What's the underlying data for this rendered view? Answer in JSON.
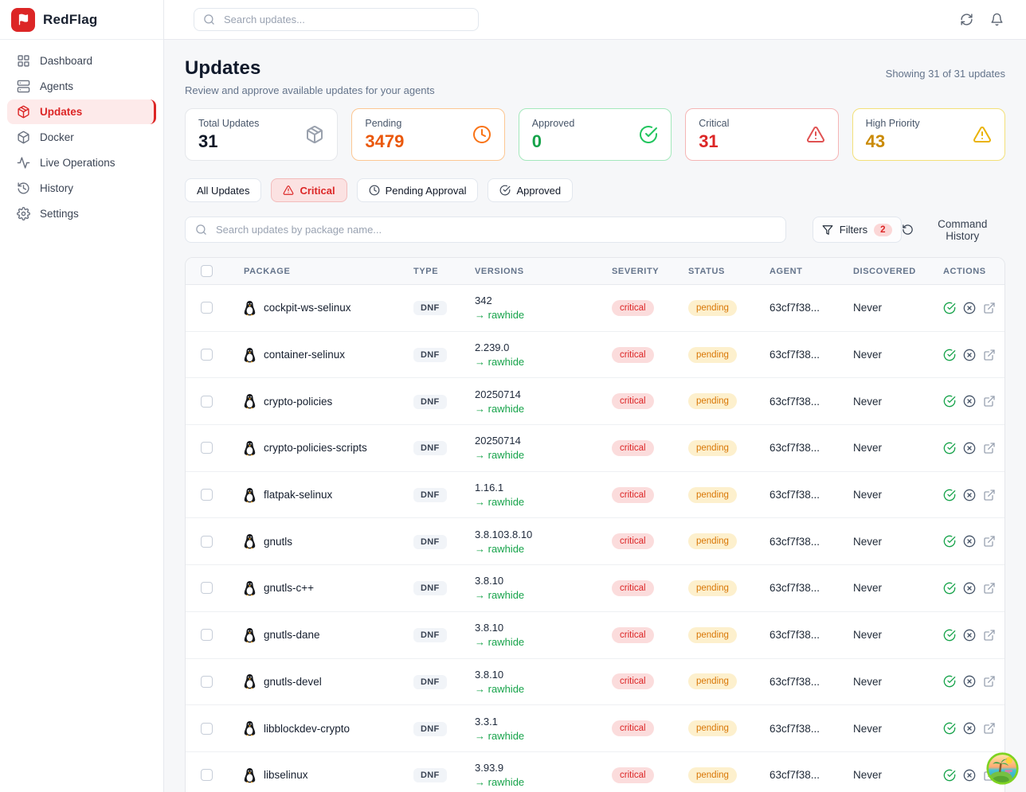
{
  "brand": {
    "name": "RedFlag",
    "accent_color": "#dc2626"
  },
  "sidebar": {
    "items": [
      {
        "label": "Dashboard",
        "icon": "grid",
        "active": false
      },
      {
        "label": "Agents",
        "icon": "server",
        "active": false
      },
      {
        "label": "Updates",
        "icon": "package",
        "active": true
      },
      {
        "label": "Docker",
        "icon": "box",
        "active": false
      },
      {
        "label": "Live Operations",
        "icon": "activity",
        "active": false
      },
      {
        "label": "History",
        "icon": "history",
        "active": false
      },
      {
        "label": "Settings",
        "icon": "gear",
        "active": false
      }
    ]
  },
  "topbar": {
    "search_placeholder": "Search updates...",
    "action_icons": [
      "refresh",
      "bell"
    ]
  },
  "page": {
    "title": "Updates",
    "subtitle": "Review and approve available updates for your agents",
    "showing": "Showing 31 of 31 updates"
  },
  "stats": [
    {
      "label": "Total Updates",
      "value": "31",
      "icon": "package",
      "theme": "default"
    },
    {
      "label": "Pending",
      "value": "3479",
      "icon": "clock",
      "theme": "orange"
    },
    {
      "label": "Approved",
      "value": "0",
      "icon": "check-circle",
      "theme": "green"
    },
    {
      "label": "Critical",
      "value": "31",
      "icon": "alert-triangle",
      "theme": "red"
    },
    {
      "label": "High Priority",
      "value": "43",
      "icon": "alert-triangle",
      "theme": "yellow"
    }
  ],
  "filter_tabs": [
    {
      "label": "All Updates",
      "icon": null,
      "active": false
    },
    {
      "label": "Critical",
      "icon": "alert-triangle",
      "active": true
    },
    {
      "label": "Pending Approval",
      "icon": "clock",
      "active": false
    },
    {
      "label": "Approved",
      "icon": "check-circle",
      "active": false
    }
  ],
  "toolbar": {
    "search_placeholder": "Search updates by package name...",
    "filters_label": "Filters",
    "filters_count": "2",
    "command_history_label": "Command History"
  },
  "table": {
    "columns": [
      "PACKAGE",
      "TYPE",
      "VERSIONS",
      "SEVERITY",
      "STATUS",
      "AGENT",
      "DISCOVERED",
      "ACTIONS"
    ],
    "arrow": "→",
    "row_action_icons": [
      "check-circle",
      "x-circle",
      "external-link"
    ],
    "rows": [
      {
        "package": "cockpit-ws-selinux",
        "type": "DNF",
        "version": "342",
        "target": "rawhide",
        "severity": "critical",
        "status": "pending",
        "agent": "63cf7f38...",
        "discovered": "Never"
      },
      {
        "package": "container-selinux",
        "type": "DNF",
        "version": "2.239.0",
        "target": "rawhide",
        "severity": "critical",
        "status": "pending",
        "agent": "63cf7f38...",
        "discovered": "Never"
      },
      {
        "package": "crypto-policies",
        "type": "DNF",
        "version": "20250714",
        "target": "rawhide",
        "severity": "critical",
        "status": "pending",
        "agent": "63cf7f38...",
        "discovered": "Never"
      },
      {
        "package": "crypto-policies-scripts",
        "type": "DNF",
        "version": "20250714",
        "target": "rawhide",
        "severity": "critical",
        "status": "pending",
        "agent": "63cf7f38...",
        "discovered": "Never"
      },
      {
        "package": "flatpak-selinux",
        "type": "DNF",
        "version": "1.16.1",
        "target": "rawhide",
        "severity": "critical",
        "status": "pending",
        "agent": "63cf7f38...",
        "discovered": "Never"
      },
      {
        "package": "gnutls",
        "type": "DNF",
        "version": "3.8.103.8.10",
        "target": "rawhide",
        "severity": "critical",
        "status": "pending",
        "agent": "63cf7f38...",
        "discovered": "Never"
      },
      {
        "package": "gnutls-c++",
        "type": "DNF",
        "version": "3.8.10",
        "target": "rawhide",
        "severity": "critical",
        "status": "pending",
        "agent": "63cf7f38...",
        "discovered": "Never"
      },
      {
        "package": "gnutls-dane",
        "type": "DNF",
        "version": "3.8.10",
        "target": "rawhide",
        "severity": "critical",
        "status": "pending",
        "agent": "63cf7f38...",
        "discovered": "Never"
      },
      {
        "package": "gnutls-devel",
        "type": "DNF",
        "version": "3.8.10",
        "target": "rawhide",
        "severity": "critical",
        "status": "pending",
        "agent": "63cf7f38...",
        "discovered": "Never"
      },
      {
        "package": "libblockdev-crypto",
        "type": "DNF",
        "version": "3.3.1",
        "target": "rawhide",
        "severity": "critical",
        "status": "pending",
        "agent": "63cf7f38...",
        "discovered": "Never"
      },
      {
        "package": "libselinux",
        "type": "DNF",
        "version": "3.93.9",
        "target": "rawhide",
        "severity": "critical",
        "status": "pending",
        "agent": "63cf7f38...",
        "discovered": "Never"
      }
    ]
  },
  "colors": {
    "accent": "#dc2626",
    "pending": "#d97706",
    "approved": "#16a34a",
    "critical": "#dc2626",
    "high_priority": "#ca8a04",
    "target_version": "#16a34a"
  }
}
